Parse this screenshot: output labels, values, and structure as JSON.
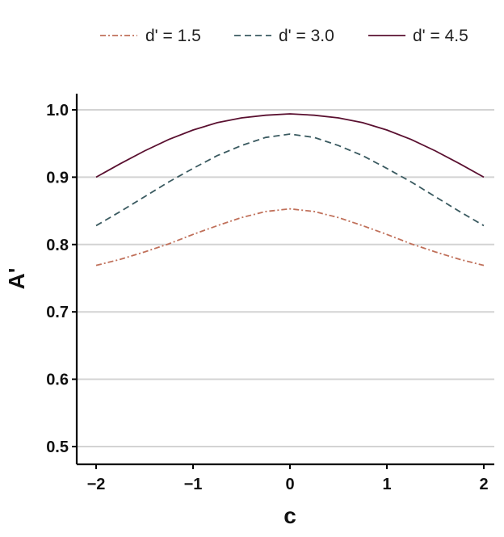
{
  "chart_data": {
    "type": "line",
    "title": "",
    "xlabel": "c",
    "ylabel": "A'",
    "xlim": [
      -2.1,
      2.1
    ],
    "ylim": [
      0.48,
      1.02
    ],
    "x_ticks": [
      "−2",
      "−1",
      "0",
      "1",
      "2"
    ],
    "x_tick_values": [
      -2,
      -1,
      0,
      1,
      2
    ],
    "y_ticks": [
      "0.5",
      "0.6",
      "0.7",
      "0.8",
      "0.9",
      "1.0"
    ],
    "y_tick_values": [
      0.5,
      0.6,
      0.7,
      0.8,
      0.9,
      1.0
    ],
    "grid": "horizontal",
    "legend_position": "top",
    "x": [
      -2,
      -1.75,
      -1.5,
      -1.25,
      -1,
      -0.75,
      -0.5,
      -0.25,
      0,
      0.25,
      0.5,
      0.75,
      1,
      1.25,
      1.5,
      1.75,
      2
    ],
    "series": [
      {
        "name": "d' = 1.5",
        "color": "#c0705a",
        "dash": "dashdot",
        "values": [
          0.769,
          0.778,
          0.789,
          0.801,
          0.815,
          0.828,
          0.84,
          0.849,
          0.853,
          0.849,
          0.84,
          0.828,
          0.815,
          0.801,
          0.789,
          0.778,
          0.769
        ]
      },
      {
        "name": "d' = 3.0",
        "color": "#3a5a60",
        "dash": "dashed",
        "values": [
          0.828,
          0.849,
          0.871,
          0.893,
          0.913,
          0.932,
          0.947,
          0.959,
          0.964,
          0.959,
          0.947,
          0.932,
          0.913,
          0.893,
          0.871,
          0.849,
          0.828
        ]
      },
      {
        "name": "d' = 4.5",
        "color": "#5a1030",
        "dash": "solid",
        "values": [
          0.9,
          0.92,
          0.939,
          0.956,
          0.97,
          0.981,
          0.988,
          0.992,
          0.994,
          0.992,
          0.988,
          0.981,
          0.97,
          0.956,
          0.939,
          0.92,
          0.9
        ]
      }
    ]
  }
}
